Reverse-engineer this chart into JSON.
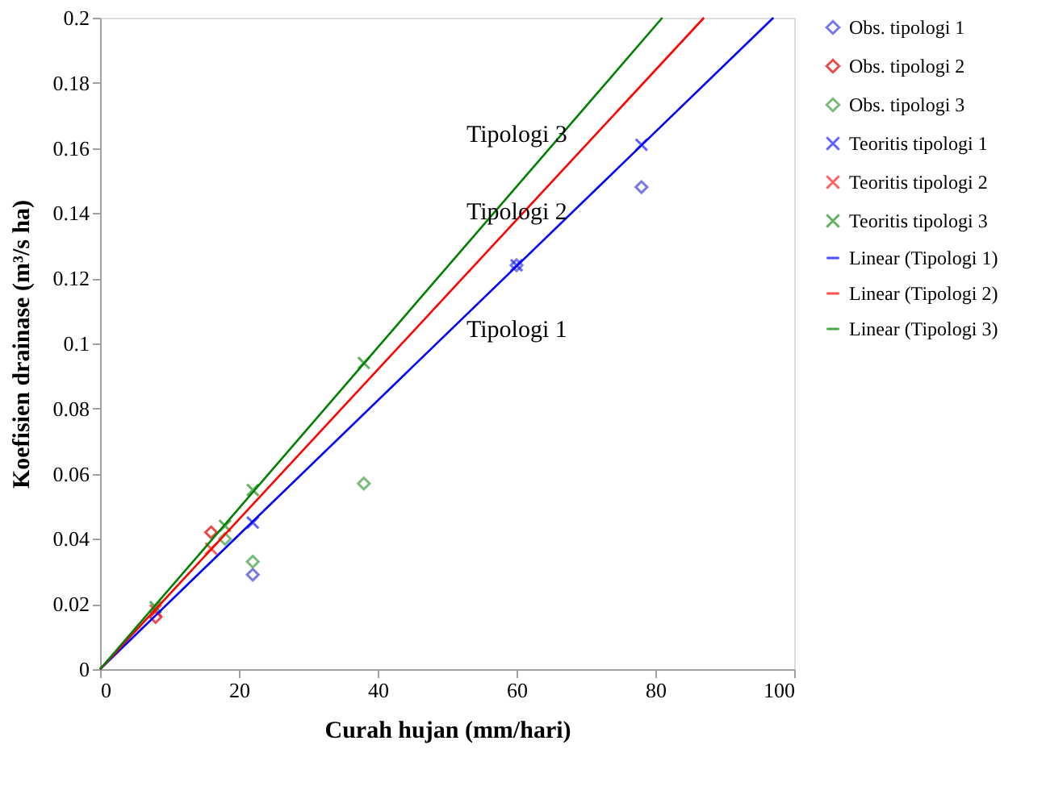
{
  "chart_data": {
    "type": "scatter",
    "xlabel": "Curah hujan (mm/hari)",
    "ylabel": "Koefisien drainase (m³/s ha)",
    "xlim": [
      0,
      100
    ],
    "xticks": [
      0,
      20,
      40,
      60,
      80,
      100
    ],
    "ylim": [
      0,
      0.2
    ],
    "yticks": [
      0,
      0.02,
      0.04,
      0.06,
      0.08,
      0.1,
      0.12,
      0.14,
      0.16,
      0.18,
      0.2
    ],
    "grid": false,
    "legend": "right",
    "series": [
      {
        "name": "Obs. tipologi 1",
        "marker": "diamond",
        "color": "#4040e0",
        "x": [
          22,
          60,
          78
        ],
        "values": [
          0.029,
          0.124,
          0.148
        ]
      },
      {
        "name": "Obs. tipologi 2",
        "marker": "diamond",
        "color": "#e00000",
        "x": [
          8,
          16
        ],
        "values": [
          0.016,
          0.042
        ]
      },
      {
        "name": "Obs. tipologi 3",
        "marker": "diamond",
        "color": "#40a040",
        "x": [
          18,
          22,
          38
        ],
        "values": [
          0.04,
          0.033,
          0.057
        ]
      },
      {
        "name": "Teoritis tipologi 1",
        "marker": "cross",
        "color": "#2020ff",
        "x": [
          22,
          60,
          78
        ],
        "values": [
          0.045,
          0.124,
          0.161
        ]
      },
      {
        "name": "Teoritis tipologi 2",
        "marker": "cross",
        "color": "#ff2020",
        "x": [
          8,
          16
        ],
        "values": [
          0.018,
          0.037
        ]
      },
      {
        "name": "Teoritis tipologi 3",
        "marker": "cross",
        "color": "#209020",
        "x": [
          8,
          18,
          22,
          38
        ],
        "values": [
          0.019,
          0.044,
          0.055,
          0.094
        ]
      },
      {
        "name": "Linear (Tipologi 1)",
        "type": "line",
        "marker": "none",
        "color": "#0000ff",
        "x": [
          0,
          97
        ],
        "values": [
          0,
          0.2
        ]
      },
      {
        "name": "Linear (Tipologi 2)",
        "type": "line",
        "marker": "none",
        "color": "#ff0000",
        "x": [
          0,
          87
        ],
        "values": [
          0,
          0.2
        ]
      },
      {
        "name": "Linear (Tipologi 3)",
        "type": "line",
        "marker": "none",
        "color": "#008000",
        "x": [
          0,
          81
        ],
        "values": [
          0,
          0.2
        ]
      }
    ],
    "annotations": [
      "Tipologi 3",
      "Tipologi 2",
      "Tipologi 1"
    ]
  }
}
